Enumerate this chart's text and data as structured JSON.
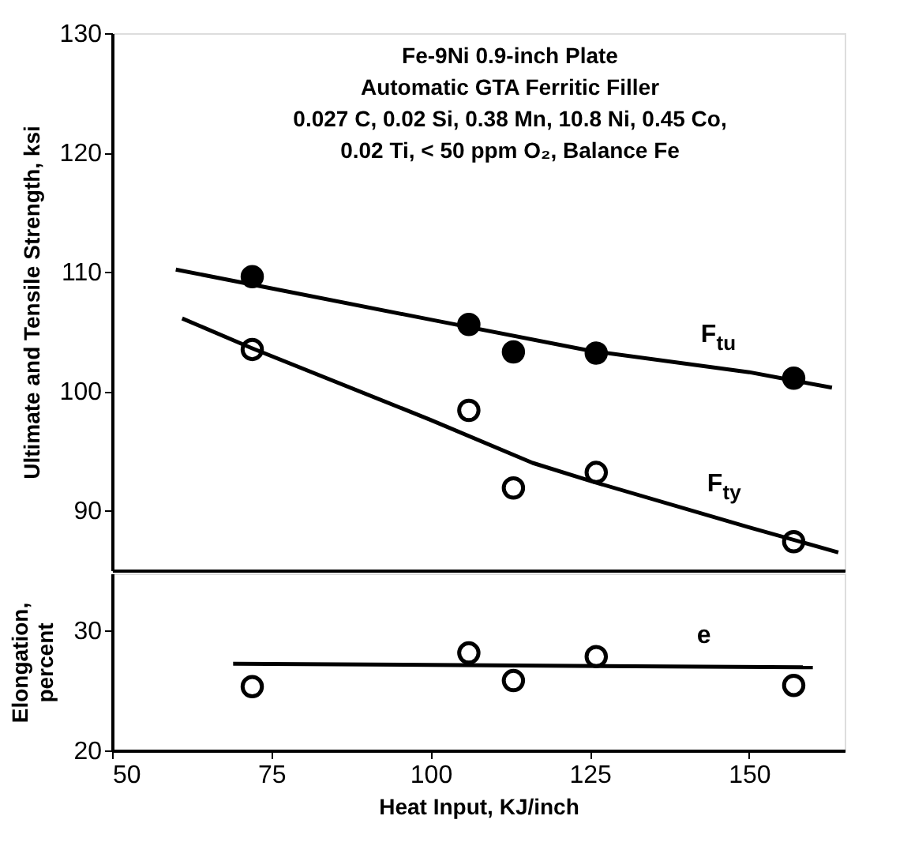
{
  "chart_data": [
    {
      "type": "scatter",
      "title": "Fe-9Ni 0.9-inch Plate\nAutomatic GTA Ferritic Filler\n0.027 C, 0.02 Si, 0.38 Mn, 10.8 Ni, 0.45 Co,\n0.02 Ti, < 50 ppm O₂, Balance Fe",
      "ylabel": "Ultimate and Tensile Strength, ksi",
      "xlim": [
        50,
        165
      ],
      "ylim": [
        85,
        130
      ],
      "yticks": [
        90,
        100,
        110,
        120,
        130
      ],
      "tick_labels": "y",
      "series": [
        {
          "color": "#000000",
          "marker": "circle",
          "x": [
            72,
            106,
            113,
            126,
            157
          ],
          "values": [
            109.6,
            105.6,
            103.3,
            103.2,
            101.1
          ]
        },
        {
          "color": "#ffffff",
          "marker": "circle",
          "x": [
            72,
            106,
            113,
            126,
            157
          ],
          "values": [
            103.5,
            98.4,
            91.9,
            93.2,
            87.4
          ]
        },
        {
          "type": "line",
          "name": "F$_{tu}$",
          "color": "#000000",
          "x": [
            60,
            100,
            125,
            150,
            163
          ],
          "values": [
            110.2,
            106,
            103.4,
            101.6,
            100.3
          ]
        },
        {
          "type": "line",
          "name": "F$_{ty}$",
          "color": "#000000",
          "x": [
            61,
            72,
            100,
            116,
            125,
            150,
            164
          ],
          "values": [
            106.1,
            103.6,
            97.6,
            94.0,
            92.5,
            88.6,
            86.5
          ]
        }
      ]
    },
    {
      "type": "scatter",
      "ylabel": "Elongation,\npercent",
      "xlabel": "Heat Input, KJ/inch",
      "xlim": [
        50,
        165
      ],
      "xticks": [
        50,
        75,
        100,
        125,
        150
      ],
      "ylim": [
        20,
        34.7
      ],
      "yticks": [
        20,
        30
      ],
      "series": [
        {
          "color": "#ffffff",
          "marker": "circle",
          "x": [
            72,
            106,
            113,
            126,
            157
          ],
          "values": [
            25.3,
            28.1,
            25.8,
            27.8,
            25.4
          ]
        },
        {
          "type": "line",
          "name": "e",
          "color": "#000000",
          "x": [
            69,
            160
          ],
          "values": [
            27.2,
            26.9
          ]
        }
      ]
    }
  ]
}
